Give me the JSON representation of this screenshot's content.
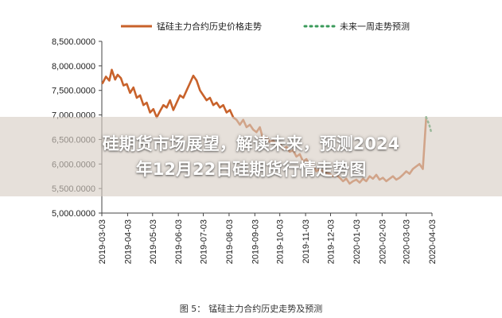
{
  "headline": {
    "line1": "硅期货市场展望，解读未来，预测2024",
    "line2": "年12月22日硅期货行情走势图"
  },
  "caption": {
    "figure_label": "图 5：",
    "text": "锰硅主力合约历史走势及预测"
  },
  "colors": {
    "history_line": "#c8622b",
    "forecast_line": "#3a9a5a",
    "axis": "#444444",
    "overlay": "rgba(215,205,195,0.62)"
  },
  "chart_data": {
    "type": "line",
    "title": "",
    "xlabel": "",
    "ylabel": "",
    "ylim": [
      5000,
      8500
    ],
    "y_ticks": [
      "5,000.0000",
      "5,500.0000",
      "6,000.0000",
      "6,500.0000",
      "7,000.0000",
      "7,500.0000",
      "8,000.0000",
      "8,500.0000"
    ],
    "x_ticks": [
      "2019-03-03",
      "2019-04-03",
      "2019-05-03",
      "2019-06-03",
      "2019-07-03",
      "2019-08-03",
      "2019-09-03",
      "2019-10-03",
      "2019-11-03",
      "2019-12-03",
      "2020-01-03",
      "2020-02-03",
      "2020-03-03",
      "2020-04-03"
    ],
    "legend": {
      "position": "top"
    },
    "series": [
      {
        "name": "锰硅主力合约历史价格走势",
        "style": "solid",
        "x": [
          "2019-03-04",
          "2019-03-08",
          "2019-03-12",
          "2019-03-15",
          "2019-03-19",
          "2019-03-22",
          "2019-03-26",
          "2019-03-29",
          "2019-04-02",
          "2019-04-06",
          "2019-04-10",
          "2019-04-14",
          "2019-04-18",
          "2019-04-22",
          "2019-04-26",
          "2019-04-30",
          "2019-05-04",
          "2019-05-08",
          "2019-05-12",
          "2019-05-16",
          "2019-05-20",
          "2019-05-24",
          "2019-05-28",
          "2019-06-01",
          "2019-06-05",
          "2019-06-09",
          "2019-06-13",
          "2019-06-17",
          "2019-06-21",
          "2019-06-25",
          "2019-06-29",
          "2019-07-03",
          "2019-07-07",
          "2019-07-11",
          "2019-07-15",
          "2019-07-19",
          "2019-07-23",
          "2019-07-27",
          "2019-07-31",
          "2019-08-04",
          "2019-08-08",
          "2019-08-12",
          "2019-08-16",
          "2019-08-20",
          "2019-08-24",
          "2019-08-28",
          "2019-09-01",
          "2019-09-05",
          "2019-09-09",
          "2019-09-13",
          "2019-09-17",
          "2019-09-21",
          "2019-09-25",
          "2019-09-29",
          "2019-10-03",
          "2019-10-07",
          "2019-10-11",
          "2019-10-15",
          "2019-10-19",
          "2019-10-23",
          "2019-10-27",
          "2019-10-31",
          "2019-11-04",
          "2019-11-08",
          "2019-11-12",
          "2019-11-16",
          "2019-11-20",
          "2019-11-24",
          "2019-11-28",
          "2019-12-02",
          "2019-12-06",
          "2019-12-10",
          "2019-12-14",
          "2019-12-18",
          "2019-12-22",
          "2019-12-26",
          "2019-12-30",
          "2020-01-03",
          "2020-01-07",
          "2020-01-11",
          "2020-01-15",
          "2020-01-19",
          "2020-01-23",
          "2020-01-27",
          "2020-01-31",
          "2020-02-04",
          "2020-02-08",
          "2020-02-12",
          "2020-02-16",
          "2020-02-20",
          "2020-02-24",
          "2020-02-28",
          "2020-03-03",
          "2020-03-07",
          "2020-03-11",
          "2020-03-15",
          "2020-03-19",
          "2020-03-23",
          "2020-03-27"
        ],
        "values": [
          7650,
          7780,
          7700,
          7920,
          7720,
          7820,
          7750,
          7600,
          7630,
          7450,
          7560,
          7350,
          7400,
          7200,
          7250,
          7050,
          7120,
          6950,
          7080,
          7200,
          7150,
          7300,
          7100,
          7250,
          7400,
          7350,
          7500,
          7650,
          7800,
          7700,
          7500,
          7400,
          7300,
          7350,
          7200,
          7250,
          7150,
          7200,
          7050,
          7100,
          6950,
          6900,
          6800,
          6900,
          6750,
          6800,
          6700,
          6650,
          6750,
          6500,
          6550,
          6450,
          6480,
          6400,
          6420,
          6300,
          6350,
          6250,
          6280,
          6150,
          6200,
          6050,
          6100,
          5950,
          6000,
          5850,
          5900,
          5850,
          5820,
          5800,
          5750,
          5780,
          5720,
          5650,
          5700,
          5600,
          5650,
          5680,
          5620,
          5700,
          5650,
          5750,
          5700,
          5780,
          5680,
          5720,
          5650,
          5700,
          5750,
          5680,
          5720,
          5780,
          5850,
          5800,
          5900,
          5950,
          6000,
          5900,
          6950
        ]
      },
      {
        "name": "未来一周走势预测",
        "style": "dotted",
        "x": [
          "2020-03-27",
          "2020-03-29",
          "2020-03-31",
          "2020-04-02"
        ],
        "values": [
          6950,
          6870,
          6780,
          6650
        ]
      }
    ]
  }
}
